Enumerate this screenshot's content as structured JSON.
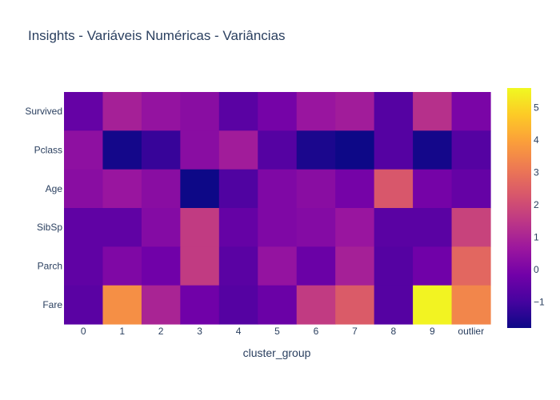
{
  "chart_data": {
    "type": "heatmap",
    "title": "Insights - Variáveis Numéricas - Variâncias",
    "xlabel": "cluster_group",
    "ylabel": "",
    "x": [
      "0",
      "1",
      "2",
      "3",
      "4",
      "5",
      "6",
      "7",
      "8",
      "9",
      "outlier"
    ],
    "y": [
      "Survived",
      "Pclass",
      "Age",
      "SibSp",
      "Parch",
      "Fare"
    ],
    "z": [
      [
        -0.4,
        0.9,
        0.5,
        0.3,
        -0.6,
        -0.1,
        0.6,
        0.8,
        -0.7,
        1.3,
        0.0
      ],
      [
        0.4,
        -1.7,
        -1.2,
        0.3,
        0.8,
        -0.7,
        -1.6,
        -1.8,
        -0.7,
        -1.7,
        -0.7
      ],
      [
        0.3,
        0.6,
        0.3,
        -1.8,
        -0.8,
        0.1,
        0.3,
        -0.1,
        2.3,
        -0.1,
        -0.4
      ],
      [
        -0.5,
        -0.5,
        0.2,
        1.6,
        -0.4,
        0.1,
        0.2,
        0.6,
        -0.6,
        -0.6,
        1.8
      ],
      [
        -0.5,
        0.1,
        -0.2,
        1.6,
        -0.6,
        0.5,
        -0.3,
        0.9,
        -0.7,
        -0.2,
        2.7
      ],
      [
        -0.6,
        3.6,
        1.0,
        -0.2,
        -0.7,
        -0.3,
        1.6,
        2.4,
        -0.7,
        5.5,
        3.4
      ]
    ],
    "colorbar": {
      "range": [
        -1.8,
        5.6
      ],
      "ticks": [
        "−1",
        "0",
        "1",
        "2",
        "3",
        "4",
        "5"
      ],
      "tick_values": [
        -1,
        0,
        1,
        2,
        3,
        4,
        5
      ],
      "colorscale": "plasma"
    }
  }
}
